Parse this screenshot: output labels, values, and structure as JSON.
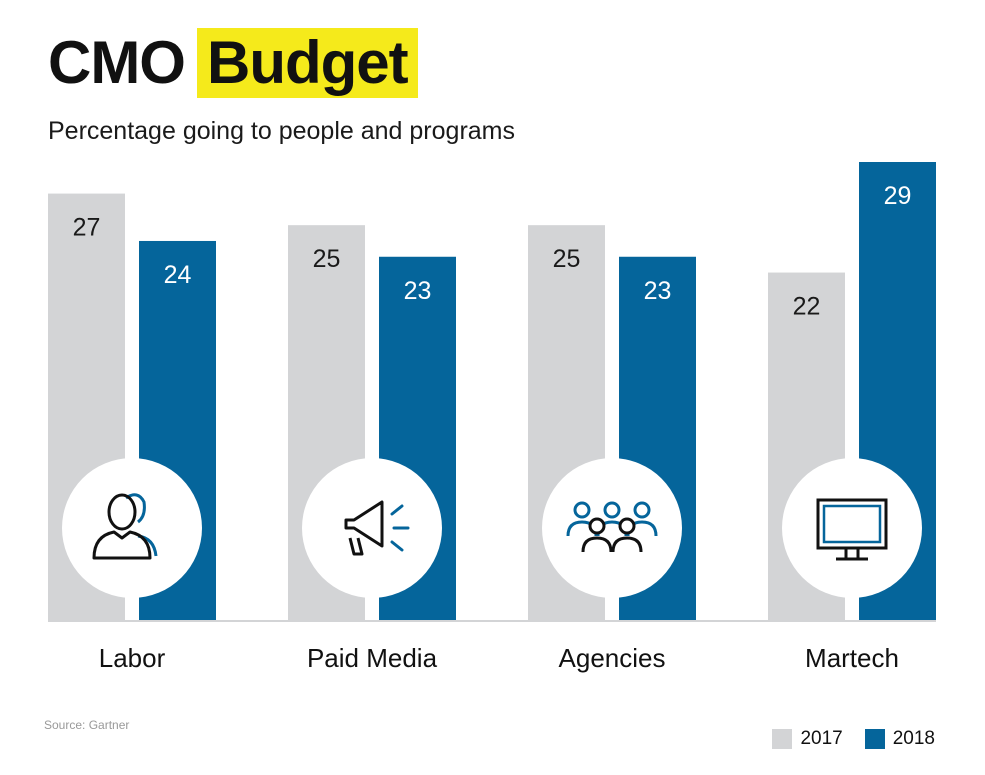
{
  "header": {
    "title_part1": "CMO",
    "title_part2": "Budget",
    "subtitle": "Percentage going to people and programs",
    "highlight_color": "#f5ea1b"
  },
  "chart_data": {
    "type": "bar",
    "categories": [
      "Labor",
      "Paid Media",
      "Agencies",
      "Martech"
    ],
    "series": [
      {
        "name": "2017",
        "values": [
          27,
          25,
          25,
          22
        ],
        "color": "#d3d4d6"
      },
      {
        "name": "2018",
        "values": [
          24,
          23,
          23,
          29
        ],
        "color": "#05659b"
      }
    ],
    "ylim": [
      0,
      29
    ],
    "grid": false,
    "legend_position": "bottom-right",
    "category_icons": [
      "people-icon",
      "megaphone-icon",
      "group-icon",
      "monitor-icon"
    ]
  },
  "footer": {
    "source": "Source: Gartner"
  }
}
